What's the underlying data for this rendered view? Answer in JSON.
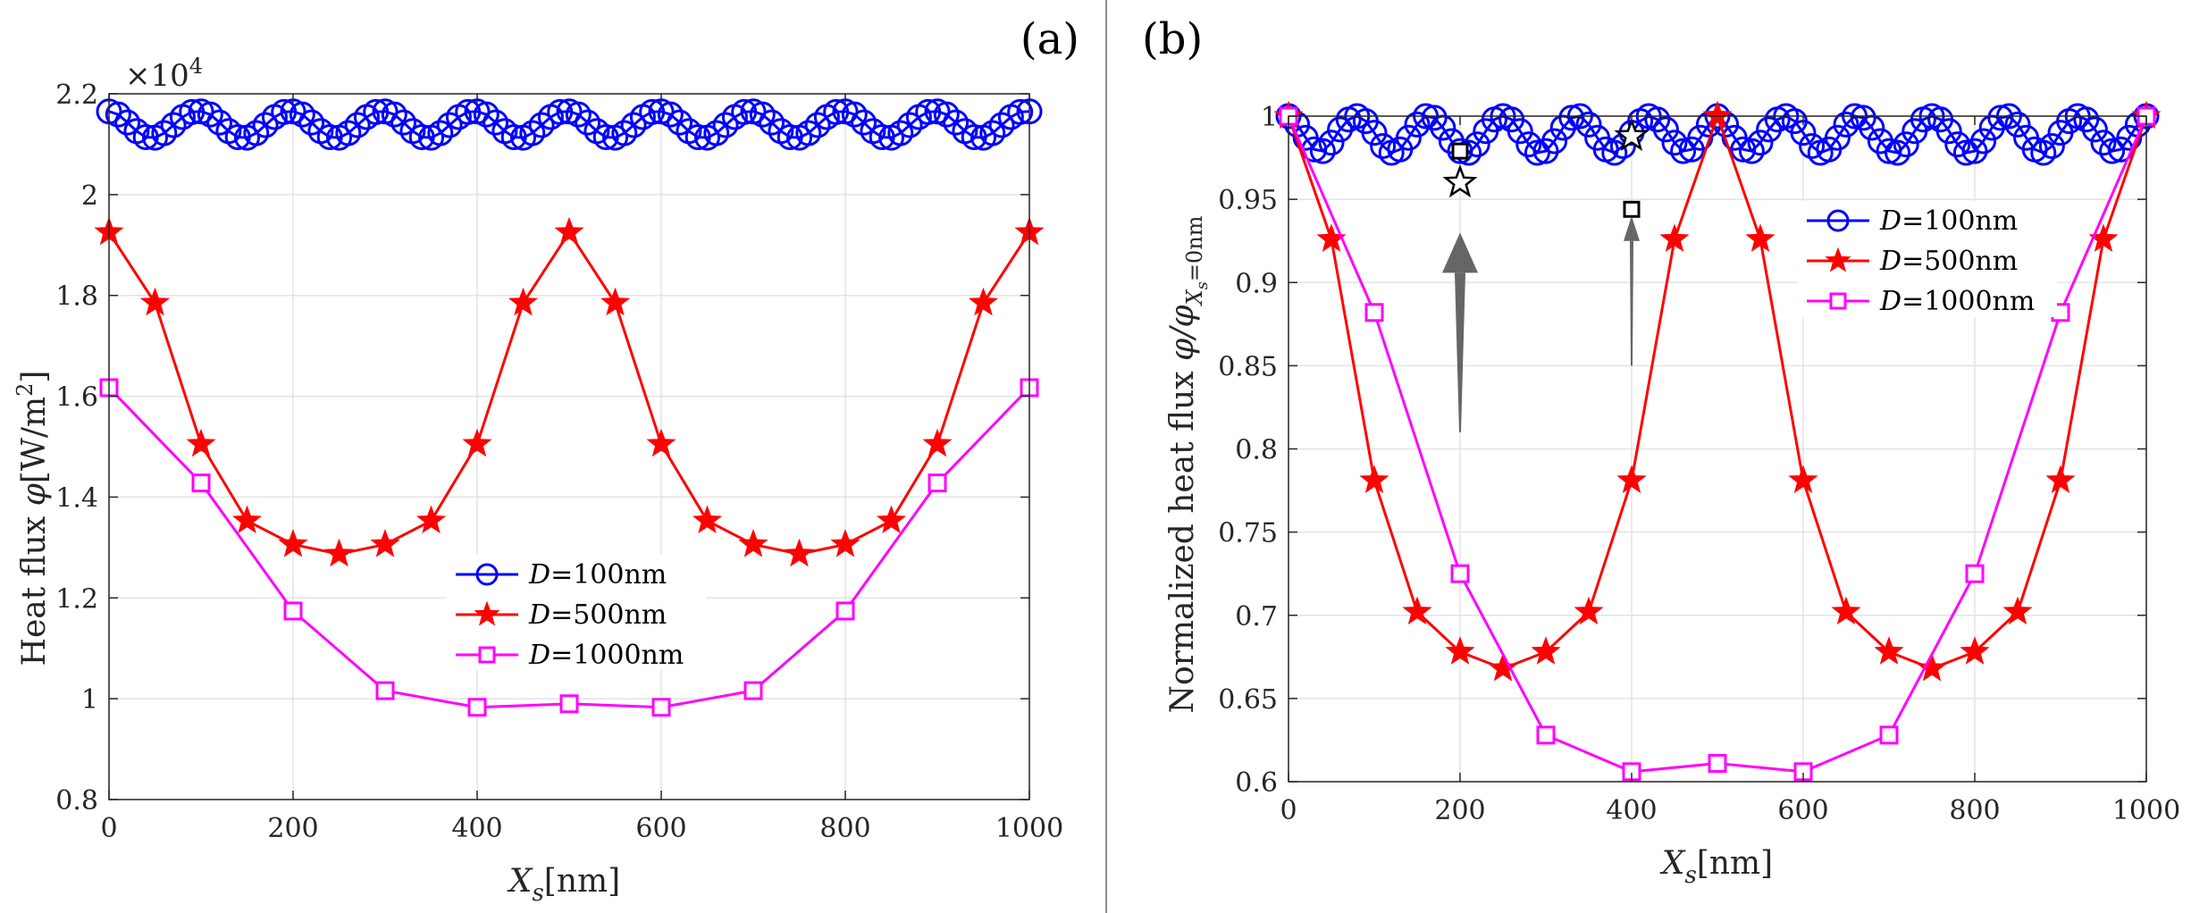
{
  "chart_data": [
    {
      "type": "line",
      "panel_label": "(a)",
      "xlabel": "X_s[nm]",
      "xlabel_var": "X",
      "xlabel_sub": "s",
      "xlabel_unit": "[nm]",
      "ylabel": "Heat flux φ[W/m²]",
      "ylabel_prefix": "Heat flux ",
      "ylabel_var": "φ",
      "ylabel_unit": "[W/m",
      "ylabel_sup": "2",
      "ylabel_close": "]",
      "exponent_label": "×10",
      "exponent_power": "4",
      "xlim": [
        0,
        1000
      ],
      "ylim": [
        0.8,
        2.2
      ],
      "xticks": [
        0,
        200,
        400,
        600,
        800,
        1000
      ],
      "xtick_labels": [
        "0",
        "200",
        "400",
        "600",
        "800",
        "1000"
      ],
      "yticks": [
        0.8,
        1.0,
        1.2,
        1.4,
        1.6,
        1.8,
        2.0,
        2.2
      ],
      "ytick_labels": [
        "0.8",
        "1",
        "1.2",
        "1.4",
        "1.6",
        "1.8",
        "2",
        "2.2"
      ],
      "grid": true,
      "legend_position": "lower-center",
      "series": [
        {
          "name": "D=100nm",
          "label_var": "D",
          "label_rest": "=100nm",
          "color": "#0000ff",
          "marker": "circle",
          "x": [
            0,
            10,
            20,
            30,
            40,
            50,
            60,
            70,
            80,
            90,
            100,
            110,
            120,
            130,
            140,
            150,
            160,
            170,
            180,
            190,
            200,
            210,
            220,
            230,
            240,
            250,
            260,
            270,
            280,
            290,
            300,
            310,
            320,
            330,
            340,
            350,
            360,
            370,
            380,
            390,
            400,
            410,
            420,
            430,
            440,
            450,
            460,
            470,
            480,
            490,
            500,
            510,
            520,
            530,
            540,
            550,
            560,
            570,
            580,
            590,
            600,
            610,
            620,
            630,
            640,
            650,
            660,
            670,
            680,
            690,
            700,
            710,
            720,
            730,
            740,
            750,
            760,
            770,
            780,
            790,
            800,
            810,
            820,
            830,
            840,
            850,
            860,
            870,
            880,
            890,
            900,
            910,
            920,
            930,
            940,
            950,
            960,
            970,
            980,
            990,
            1000
          ],
          "y": [
            2.165,
            2.159,
            2.143,
            2.126,
            2.114,
            2.113,
            2.122,
            2.138,
            2.154,
            2.164,
            2.165,
            2.159,
            2.143,
            2.126,
            2.114,
            2.113,
            2.122,
            2.138,
            2.154,
            2.164,
            2.165,
            2.159,
            2.143,
            2.126,
            2.114,
            2.113,
            2.122,
            2.138,
            2.154,
            2.164,
            2.165,
            2.159,
            2.143,
            2.126,
            2.114,
            2.113,
            2.122,
            2.138,
            2.154,
            2.164,
            2.165,
            2.159,
            2.143,
            2.126,
            2.114,
            2.113,
            2.122,
            2.138,
            2.154,
            2.164,
            2.165,
            2.159,
            2.143,
            2.126,
            2.114,
            2.113,
            2.122,
            2.138,
            2.154,
            2.164,
            2.165,
            2.159,
            2.143,
            2.126,
            2.114,
            2.113,
            2.122,
            2.138,
            2.154,
            2.164,
            2.165,
            2.159,
            2.143,
            2.126,
            2.114,
            2.113,
            2.122,
            2.138,
            2.154,
            2.164,
            2.165,
            2.159,
            2.143,
            2.126,
            2.114,
            2.113,
            2.122,
            2.138,
            2.154,
            2.164,
            2.165,
            2.159,
            2.143,
            2.126,
            2.114,
            2.113,
            2.122,
            2.138,
            2.154,
            2.164,
            2.165
          ]
        },
        {
          "name": "D=500nm",
          "label_var": "D",
          "label_rest": "=500nm",
          "color": "#ff0000",
          "marker": "star",
          "x": [
            0,
            50,
            100,
            150,
            200,
            250,
            300,
            350,
            400,
            450,
            500,
            550,
            600,
            650,
            700,
            750,
            800,
            850,
            900,
            950,
            1000
          ],
          "y": [
            1.925,
            1.785,
            1.505,
            1.353,
            1.306,
            1.287,
            1.306,
            1.353,
            1.505,
            1.785,
            1.925,
            1.785,
            1.505,
            1.353,
            1.306,
            1.287,
            1.306,
            1.353,
            1.505,
            1.785,
            1.925
          ]
        },
        {
          "name": "D=1000nm",
          "label_var": "D",
          "label_rest": "=1000nm",
          "color": "#ff00ff",
          "marker": "square",
          "x": [
            0,
            100,
            200,
            300,
            400,
            500,
            600,
            700,
            800,
            900,
            1000
          ],
          "y": [
            1.617,
            1.428,
            1.174,
            1.016,
            0.983,
            0.99,
            0.983,
            1.016,
            1.174,
            1.428,
            1.617
          ]
        }
      ]
    },
    {
      "type": "line",
      "panel_label": "(b)",
      "xlabel": "X_s[nm]",
      "xlabel_var": "X",
      "xlabel_sub": "s",
      "xlabel_unit": "[nm]",
      "ylabel": "Normalized heat flux φ/φ_{X_s=0nm}",
      "ylabel_prefix": "Normalized heat flux ",
      "ylabel_var": "φ/φ",
      "ylabel_sub": "X",
      "ylabel_subsub": "s",
      "ylabel_subrest": "=0nm",
      "xlim": [
        0,
        1000
      ],
      "ylim": [
        0.6,
        1.0
      ],
      "xticks": [
        0,
        200,
        400,
        600,
        800,
        1000
      ],
      "xtick_labels": [
        "0",
        "200",
        "400",
        "600",
        "800",
        "1000"
      ],
      "yticks": [
        0.6,
        0.65,
        0.7,
        0.75,
        0.8,
        0.85,
        0.9,
        0.95,
        1.0
      ],
      "ytick_labels": [
        "0.6",
        "0.65",
        "0.7",
        "0.75",
        "0.8",
        "0.85",
        "0.9",
        "0.95",
        "1"
      ],
      "grid": true,
      "legend_position": "upper-right",
      "series": [
        {
          "name": "D=100nm",
          "label_var": "D",
          "label_rest": "=100nm",
          "color": "#0000ff",
          "marker": "circle",
          "x": [
            0,
            10,
            20,
            30,
            40,
            50,
            60,
            70,
            80,
            90,
            100,
            110,
            120,
            130,
            140,
            150,
            160,
            170,
            180,
            190,
            200,
            210,
            220,
            230,
            240,
            250,
            260,
            270,
            280,
            290,
            300,
            310,
            320,
            330,
            340,
            350,
            360,
            370,
            380,
            390,
            400,
            410,
            420,
            430,
            440,
            450,
            460,
            470,
            480,
            490,
            500,
            510,
            520,
            530,
            540,
            550,
            560,
            570,
            580,
            590,
            600,
            610,
            620,
            630,
            640,
            650,
            660,
            670,
            680,
            690,
            700,
            710,
            720,
            730,
            740,
            750,
            760,
            770,
            780,
            790,
            800,
            810,
            820,
            830,
            840,
            850,
            860,
            870,
            880,
            890,
            900,
            910,
            920,
            930,
            940,
            950,
            960,
            970,
            980,
            990,
            1000
          ],
          "y": [
            1.0,
            0.995,
            0.987,
            0.98,
            0.979,
            0.984,
            0.992,
            0.998,
            1.0,
            0.997,
            0.99,
            0.982,
            0.978,
            0.98,
            0.987,
            0.995,
            1.0,
            0.999,
            0.993,
            0.985,
            0.979,
            0.978,
            0.983,
            0.991,
            0.998,
            1.0,
            0.998,
            0.991,
            0.983,
            0.978,
            0.979,
            0.985,
            0.993,
            0.999,
            1.0,
            0.995,
            0.987,
            0.98,
            0.978,
            0.982,
            0.99,
            0.997,
            1.0,
            0.998,
            0.992,
            0.984,
            0.979,
            0.98,
            0.987,
            0.995,
            1.0,
            0.995,
            0.987,
            0.98,
            0.979,
            0.984,
            0.992,
            0.998,
            1.0,
            0.997,
            0.99,
            0.982,
            0.978,
            0.98,
            0.987,
            0.995,
            1.0,
            0.999,
            0.993,
            0.985,
            0.979,
            0.978,
            0.983,
            0.991,
            0.998,
            1.0,
            0.998,
            0.991,
            0.983,
            0.978,
            0.979,
            0.985,
            0.993,
            0.999,
            1.0,
            0.995,
            0.987,
            0.98,
            0.978,
            0.982,
            0.99,
            0.997,
            1.0,
            0.998,
            0.992,
            0.984,
            0.979,
            0.98,
            0.987,
            0.995,
            1.0
          ]
        },
        {
          "name": "D=500nm",
          "label_var": "D",
          "label_rest": "=500nm",
          "color": "#ff0000",
          "marker": "star",
          "x": [
            0,
            50,
            100,
            150,
            200,
            250,
            300,
            350,
            400,
            450,
            500,
            550,
            600,
            650,
            700,
            750,
            800,
            850,
            900,
            950,
            1000
          ],
          "y": [
            1.0,
            0.926,
            0.781,
            0.702,
            0.678,
            0.668,
            0.678,
            0.702,
            0.781,
            0.926,
            1.0,
            0.926,
            0.781,
            0.702,
            0.678,
            0.668,
            0.678,
            0.702,
            0.781,
            0.926,
            1.0
          ]
        },
        {
          "name": "D=1000nm",
          "label_var": "D",
          "label_rest": "=1000nm",
          "color": "#ff00ff",
          "marker": "square",
          "x": [
            0,
            100,
            200,
            300,
            400,
            500,
            600,
            700,
            800,
            900,
            1000
          ],
          "y": [
            1.0,
            0.882,
            0.725,
            0.628,
            0.606,
            0.611,
            0.606,
            0.628,
            0.725,
            0.882,
            1.0
          ]
        }
      ],
      "annotations": [
        {
          "kind": "square-marker",
          "x": 200,
          "y": 0.979
        },
        {
          "kind": "star-marker",
          "x": 200,
          "y": 0.96
        },
        {
          "kind": "star-marker",
          "x": 400,
          "y": 0.988
        },
        {
          "kind": "square-marker",
          "x": 400,
          "y": 0.944
        },
        {
          "kind": "arrow",
          "x": 200,
          "y_from": 0.81,
          "y_to": 0.93,
          "size": "large"
        },
        {
          "kind": "arrow",
          "x": 400,
          "y_from": 0.85,
          "y_to": 0.94,
          "size": "small"
        }
      ]
    }
  ]
}
